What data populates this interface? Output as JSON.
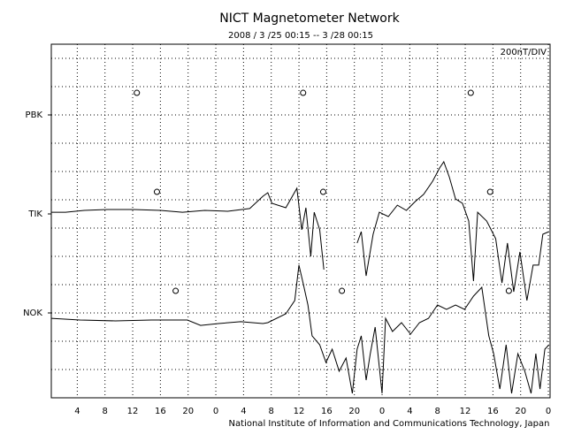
{
  "chart_data": {
    "type": "line",
    "title": "NICT Magnetometer Network",
    "subtitle": "2008 / 3 /25   00:15 -- 3 /28   00:15",
    "scale_label": "200nT/DIV",
    "footer": "National Institute of Information and Communications Technology, Japan",
    "xlim": [
      0.25,
      72.25
    ],
    "xticks": [
      4,
      8,
      12,
      16,
      20,
      {
        "value": 24,
        "label": "0"
      },
      {
        "value": 28,
        "label": "4"
      },
      {
        "value": 32,
        "label": "8"
      },
      {
        "value": 36,
        "label": "12"
      },
      {
        "value": 40,
        "label": "16"
      },
      {
        "value": 44,
        "label": "20"
      },
      {
        "value": 48,
        "label": "0"
      },
      {
        "value": 52,
        "label": "4"
      },
      {
        "value": 56,
        "label": "8"
      },
      {
        "value": 60,
        "label": "12"
      },
      {
        "value": 64,
        "label": "16"
      },
      {
        "value": 68,
        "label": "20"
      },
      {
        "value": 72,
        "label": "0"
      }
    ],
    "ylim": [
      0,
      2500
    ],
    "yticks": [
      {
        "value": 2000,
        "label": "PBK"
      },
      {
        "value": 1300,
        "label": "TIK"
      },
      {
        "value": 600,
        "label": "NOK"
      }
    ],
    "ygrid": [
      200,
      400,
      600,
      800,
      1000,
      1200,
      1400,
      1600,
      1800,
      2000,
      2200,
      2400
    ],
    "grid": true,
    "series": [
      {
        "name": "TIK",
        "color": "#000000",
        "x": [
          0.25,
          2.3,
          5,
          8.25,
          12.1,
          16,
          19.2,
          22.4,
          25.7,
          28.9,
          30.8,
          31.5,
          32.1,
          34.1,
          35.7,
          36.4,
          37,
          37.7,
          38.2,
          39,
          39.6,
          41.8,
          44.4,
          45,
          45.7,
          46.7,
          47.6,
          48.9,
          50.2,
          51.5,
          52.8,
          54,
          55.3,
          56.3,
          56.9,
          57.7,
          58.6,
          59.6,
          60.5,
          61.2,
          61.8,
          63.1,
          64.4,
          65.3,
          66.1,
          67,
          67.9,
          68.9,
          69.8,
          70.6,
          71.2,
          72.1
        ],
        "values": [
          1312,
          1312,
          1325,
          1331,
          1331,
          1325,
          1312,
          1325,
          1319,
          1338,
          1425,
          1450,
          1375,
          1344,
          1481,
          1188,
          1344,
          1000,
          1312,
          1188,
          906,
          null,
          1094,
          1175,
          862,
          1156,
          1312,
          1281,
          1362,
          1325,
          1388,
          1438,
          1531,
          1625,
          1669,
          1562,
          1406,
          1375,
          1250,
          825,
          1312,
          1250,
          1125,
          812,
          1094,
          750,
          1031,
          688,
          938,
          938,
          1156,
          1175
        ]
      },
      {
        "name": "NOK",
        "color": "#000000",
        "x": [
          0.25,
          4.4,
          9.5,
          14.7,
          19.9,
          21.8,
          24.4,
          27.6,
          30.8,
          31.5,
          34.1,
          35.4,
          36,
          36.6,
          37.3,
          37.9,
          39,
          39.9,
          40.8,
          41.8,
          42.8,
          43.7,
          44.4,
          45,
          45.7,
          46.3,
          47,
          48,
          48.5,
          49.5,
          50.8,
          52.1,
          53.4,
          54.7,
          56,
          57.3,
          58.6,
          59.9,
          61.2,
          62.4,
          63.4,
          64.1,
          65,
          65.9,
          66.7,
          67.6,
          68.6,
          69.5,
          70.2,
          70.8,
          71.5,
          72.1
        ],
        "values": [
          562,
          550,
          544,
          550,
          550,
          512,
          525,
          538,
          525,
          531,
          594,
          688,
          938,
          812,
          656,
          438,
          375,
          250,
          344,
          188,
          281,
          31,
          344,
          438,
          125,
          312,
          500,
          31,
          562,
          469,
          531,
          450,
          531,
          562,
          656,
          625,
          656,
          625,
          719,
          781,
          438,
          312,
          62,
          375,
          31,
          312,
          188,
          31,
          312,
          62,
          344,
          375
        ]
      }
    ],
    "noon_markers": [
      {
        "x": [
          12.6,
          36.6,
          60.8
        ],
        "y": 2156
      },
      {
        "x": [
          15.5,
          39.5,
          63.6
        ],
        "y": 1456
      },
      {
        "x": [
          18.2,
          42.2,
          66.3
        ],
        "y": 756
      }
    ]
  }
}
